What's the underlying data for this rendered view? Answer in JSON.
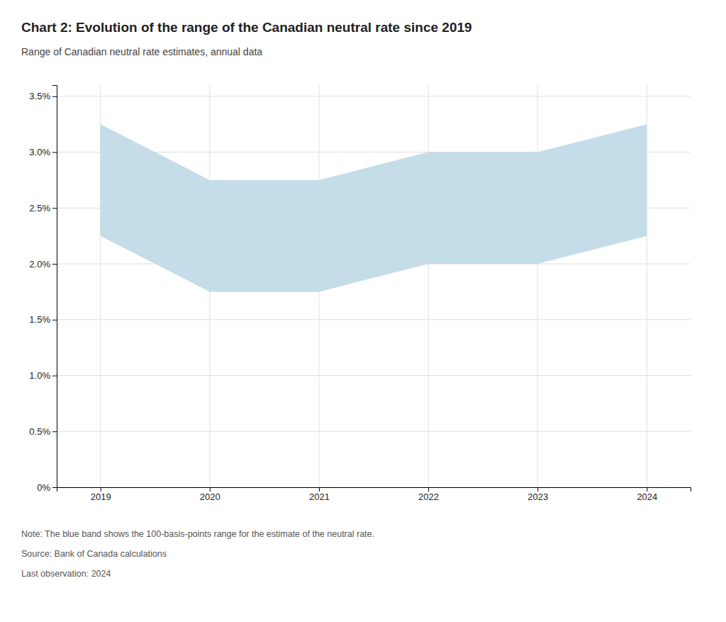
{
  "chart_data": {
    "type": "area",
    "title": "Chart 2: Evolution of the range of the Canadian neutral rate since 2019",
    "subtitle": "Range of Canadian neutral rate estimates, annual data",
    "annotations": [
      "Note: The blue band shows the 100-basis-points range for the estimate of the neutral rate.",
      "Source: Bank of Canada calculations",
      "Last observation: 2024"
    ],
    "x": [
      2019,
      2020,
      2021,
      2022,
      2023,
      2024
    ],
    "upper": [
      3.25,
      2.75,
      2.75,
      3.0,
      3.0,
      3.25
    ],
    "lower": [
      2.25,
      1.75,
      1.75,
      2.0,
      2.0,
      2.25
    ],
    "color": "#c5dce9",
    "xlim": [
      2018.6,
      2024.4
    ],
    "xticks": [
      2019,
      2020,
      2021,
      2022,
      2023,
      2024
    ],
    "ylim": [
      0,
      3.6
    ],
    "yticks": [
      {
        "value": 0.0,
        "label": "0%"
      },
      {
        "value": 0.5,
        "label": "0.5%"
      },
      {
        "value": 1.0,
        "label": "1.0%"
      },
      {
        "value": 1.5,
        "label": "1.5%"
      },
      {
        "value": 2.0,
        "label": "2.0%"
      },
      {
        "value": 2.5,
        "label": "2.5%"
      },
      {
        "value": 3.0,
        "label": "3.0%"
      },
      {
        "value": 3.5,
        "label": "3.5%"
      }
    ],
    "grid": true
  }
}
